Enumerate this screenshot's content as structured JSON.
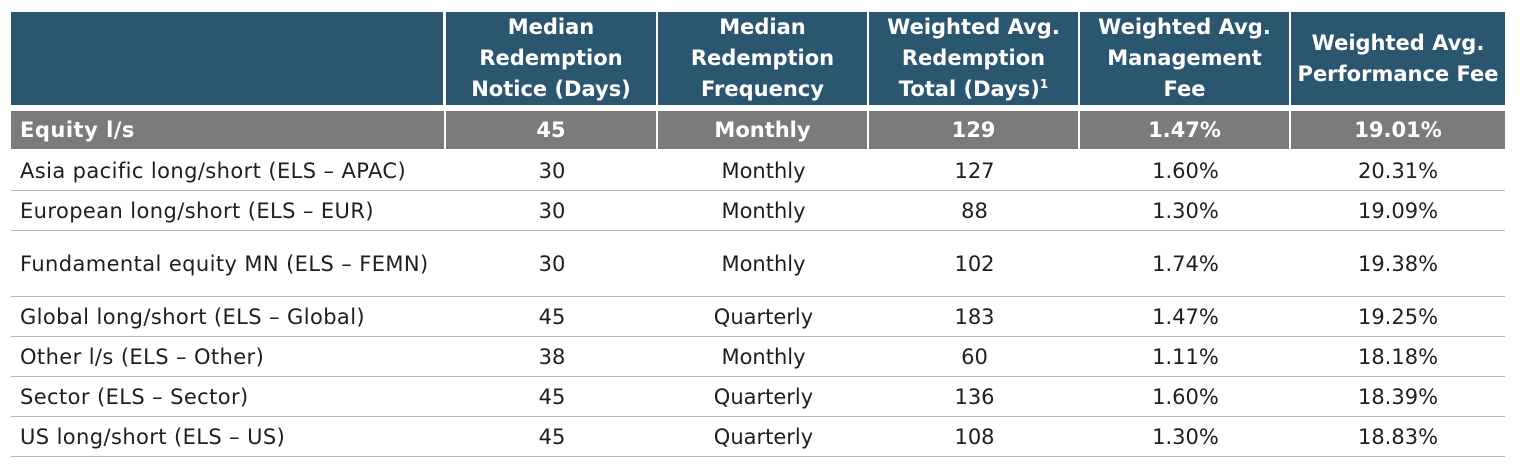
{
  "table": {
    "headers": [
      "",
      "Median Redemption Notice (Days)",
      "Median Redemption Frequency",
      "Weighted Avg. Redemption Total (Days)",
      "Weighted Avg. Management Fee",
      "Weighted Avg. Performance Fee"
    ],
    "header_footnote": "1",
    "group_row": [
      "Equity l/s",
      "45",
      "Monthly",
      "129",
      "1.47%",
      "19.01%"
    ],
    "rows": [
      [
        "Asia pacific long/short (ELS – APAC)",
        "30",
        "Monthly",
        "127",
        "1.60%",
        "20.31%"
      ],
      [
        "European long/short (ELS – EUR)",
        "30",
        "Monthly",
        "88",
        "1.30%",
        "19.09%"
      ],
      [
        "Fundamental equity MN (ELS – FEMN)",
        "30",
        "Monthly",
        "102",
        "1.74%",
        "19.38%"
      ],
      [
        "Global long/short (ELS – Global)",
        "45",
        "Quarterly",
        "183",
        "1.47%",
        "19.25%"
      ],
      [
        "Other l/s (ELS – Other)",
        "38",
        "Monthly",
        "60",
        "1.11%",
        "18.18%"
      ],
      [
        "Sector (ELS – Sector)",
        "45",
        "Quarterly",
        "136",
        "1.60%",
        "18.39%"
      ],
      [
        "US long/short (ELS – US)",
        "45",
        "Quarterly",
        "108",
        "1.30%",
        "18.83%"
      ]
    ]
  },
  "colors": {
    "header_bg": "#2b5670",
    "group_bg": "#7b7b7b",
    "rule": "#b7b7b7"
  }
}
